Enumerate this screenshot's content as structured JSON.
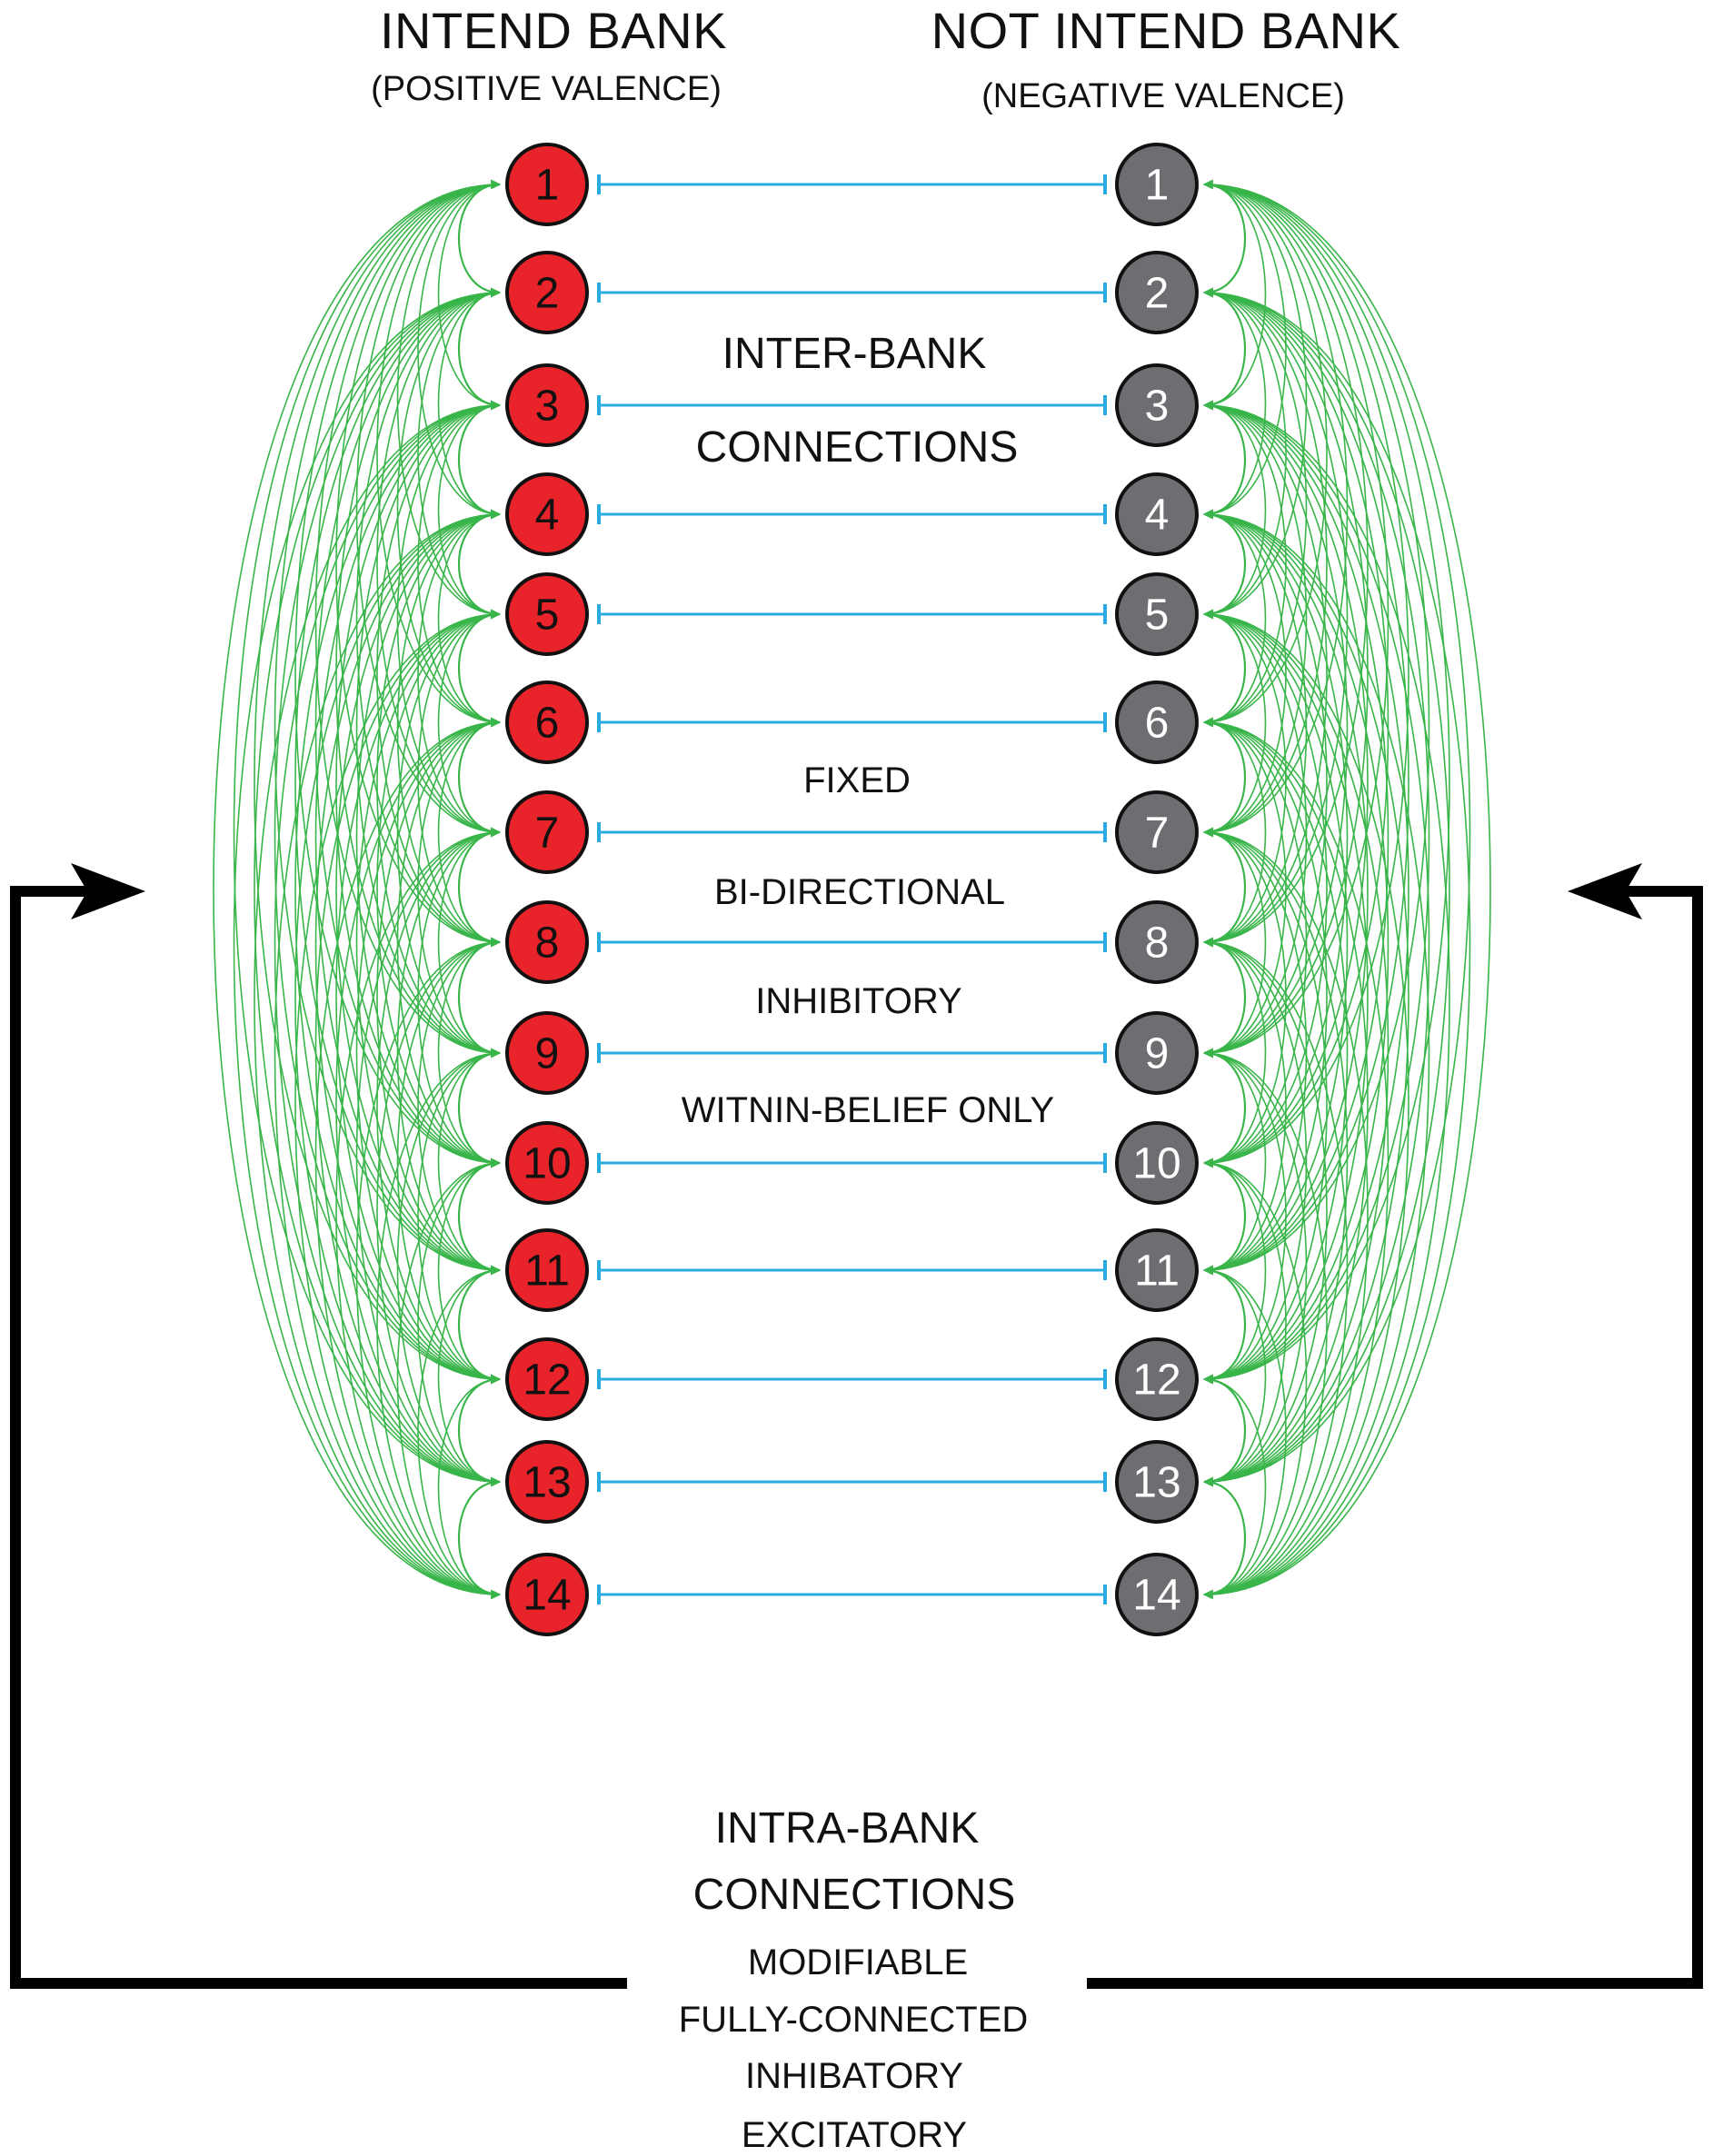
{
  "left_bank": {
    "title": "INTEND BANK",
    "subtitle": "(POSITIVE VALENCE)",
    "color": "#e8232a",
    "text_color": "#111111",
    "nodes": [
      "1",
      "2",
      "3",
      "4",
      "5",
      "6",
      "7",
      "8",
      "9",
      "10",
      "11",
      "12",
      "13",
      "14"
    ]
  },
  "right_bank": {
    "title": "NOT INTEND BANK",
    "subtitle": "(NEGATIVE VALENCE)",
    "color": "#6d6e71",
    "text_color": "#ffffff",
    "nodes": [
      "1",
      "2",
      "3",
      "4",
      "5",
      "6",
      "7",
      "8",
      "9",
      "10",
      "11",
      "12",
      "13",
      "14"
    ]
  },
  "inter_bank": {
    "heading_line1": "INTER-BANK",
    "heading_line2": "CONNECTIONS",
    "properties": [
      "FIXED",
      "BI-DIRECTIONAL",
      "INHIBITORY",
      "WITNIN-BELIEF ONLY"
    ],
    "color": "#29abe2"
  },
  "intra_bank": {
    "heading_line1": "INTRA-BANK",
    "heading_line2": "CONNECTIONS",
    "properties": [
      "MODIFIABLE",
      "FULLY-CONNECTED",
      "INHIBATORY",
      "EXCITATORY"
    ],
    "color": "#39b54a"
  },
  "feedback_arrow_color": "#000000"
}
